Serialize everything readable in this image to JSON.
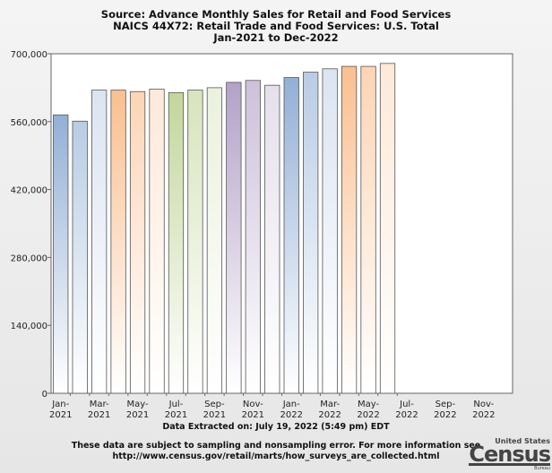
{
  "chart_data": {
    "type": "bar",
    "title": [
      "Source: Advance Monthly Sales for Retail and Food Services",
      "NAICS 44X72: Retail Trade and Food Services: U.S. Total",
      "Jan-2021 to Dec-2022"
    ],
    "categories": [
      "Jan-2021",
      "Feb-2021",
      "Mar-2021",
      "Apr-2021",
      "May-2021",
      "Jun-2021",
      "Jul-2021",
      "Aug-2021",
      "Sep-2021",
      "Oct-2021",
      "Nov-2021",
      "Dec-2021",
      "Jan-2022",
      "Feb-2022",
      "Mar-2022",
      "Apr-2022",
      "May-2022",
      "Jun-2022",
      "Jul-2022",
      "Aug-2022",
      "Sep-2022",
      "Oct-2022",
      "Nov-2022",
      "Dec-2022"
    ],
    "values": [
      574000,
      561000,
      625000,
      625000,
      622000,
      627000,
      620000,
      625000,
      630000,
      641000,
      645000,
      635000,
      651000,
      662000,
      669000,
      674000,
      674000,
      680000,
      null,
      null,
      null,
      null,
      null,
      null
    ],
    "xtick_labels": [
      [
        "Jan-",
        "2021"
      ],
      [
        "Mar-",
        "2021"
      ],
      [
        "May-",
        "2021"
      ],
      [
        "Jul-",
        "2021"
      ],
      [
        "Sep-",
        "2021"
      ],
      [
        "Nov-",
        "2021"
      ],
      [
        "Jan-",
        "2022"
      ],
      [
        "Mar-",
        "2022"
      ],
      [
        "May-",
        "2022"
      ],
      [
        "Jul-",
        "2022"
      ],
      [
        "Sep-",
        "2022"
      ],
      [
        "Nov-",
        "2022"
      ]
    ],
    "yticks": [
      0,
      140000,
      280000,
      420000,
      560000,
      700000
    ],
    "ytick_labels": [
      "0",
      "140,000",
      "280,000",
      "420,000",
      "560,000",
      "700,000"
    ],
    "ylim": [
      0,
      700000
    ],
    "grid": false,
    "bar_colors": [
      "#94afd6",
      "#b8cce4",
      "#dce4f2",
      "#fac090",
      "#fcd5b5",
      "#fde9d9",
      "#c3d69b",
      "#d7e4bc",
      "#ebf1de",
      "#b3a2c7",
      "#ccc1da",
      "#e5e0ec"
    ]
  },
  "footer": {
    "extracted": "Data Extracted on: July 19, 2022 (5:49 pm) EDT",
    "note1": "These data are subject to sampling and nonsampling error. For more information see",
    "note2": "http://www.census.gov/retail/marts/how_surveys_are_collected.html"
  },
  "logo": {
    "top": "United States",
    "main": "Census",
    "bottom": "Bureau"
  }
}
